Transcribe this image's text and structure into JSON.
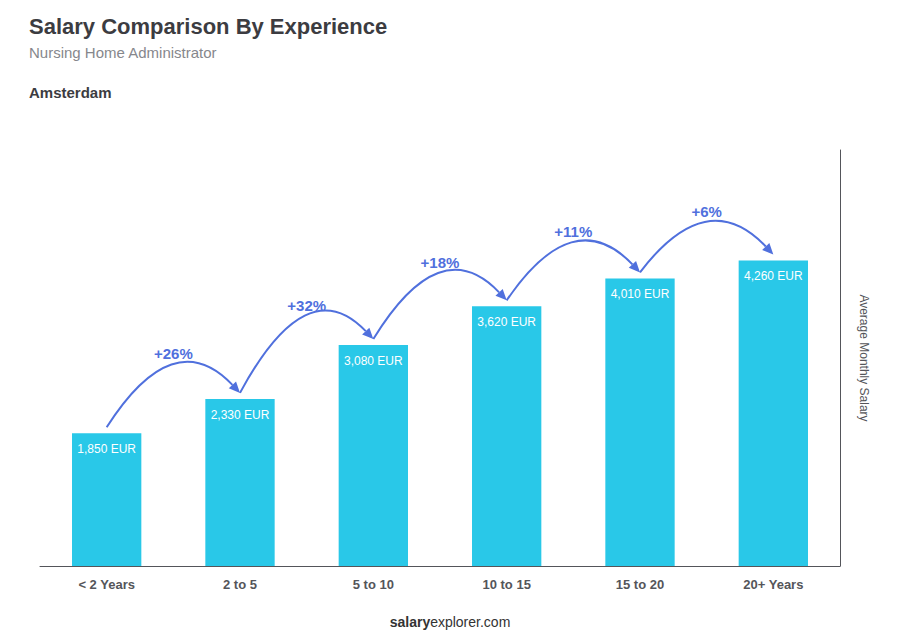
{
  "chart_data": {
    "type": "bar",
    "title": "Salary Comparison By Experience",
    "subtitle": "Nursing Home Administrator",
    "city": "Amsterdam",
    "watermark": [
      "salary",
      "explorer.com"
    ],
    "ylabel": "Average Monthly Salary",
    "categories": [
      "< 2 Years",
      "2 to 5",
      "5 to 10",
      "10 to 15",
      "15 to 20",
      "20+ Years"
    ],
    "values": [
      1850,
      2330,
      3080,
      3620,
      4010,
      4260
    ],
    "value_labels": [
      "1,850 EUR",
      "2,330 EUR",
      "3,080 EUR",
      "3,620 EUR",
      "4,010 EUR",
      "4,260 EUR"
    ],
    "data_labels": true,
    "color": "#29C8E8",
    "ylim": [
      0,
      5800
    ],
    "yticks": [],
    "tick_labels": "x",
    "grid": false,
    "annotations": [
      {
        "text": "+26%",
        "from": "< 2 Years",
        "to": "2 to 5"
      },
      {
        "text": "+32%",
        "from": "2 to 5",
        "to": "5 to 10"
      },
      {
        "text": "+18%",
        "from": "5 to 10",
        "to": "10 to 15"
      },
      {
        "text": "+11%",
        "from": "10 to 15",
        "to": "15 to 20"
      },
      {
        "text": "+6%",
        "from": "15 to 20",
        "to": "20+ Years"
      }
    ]
  }
}
